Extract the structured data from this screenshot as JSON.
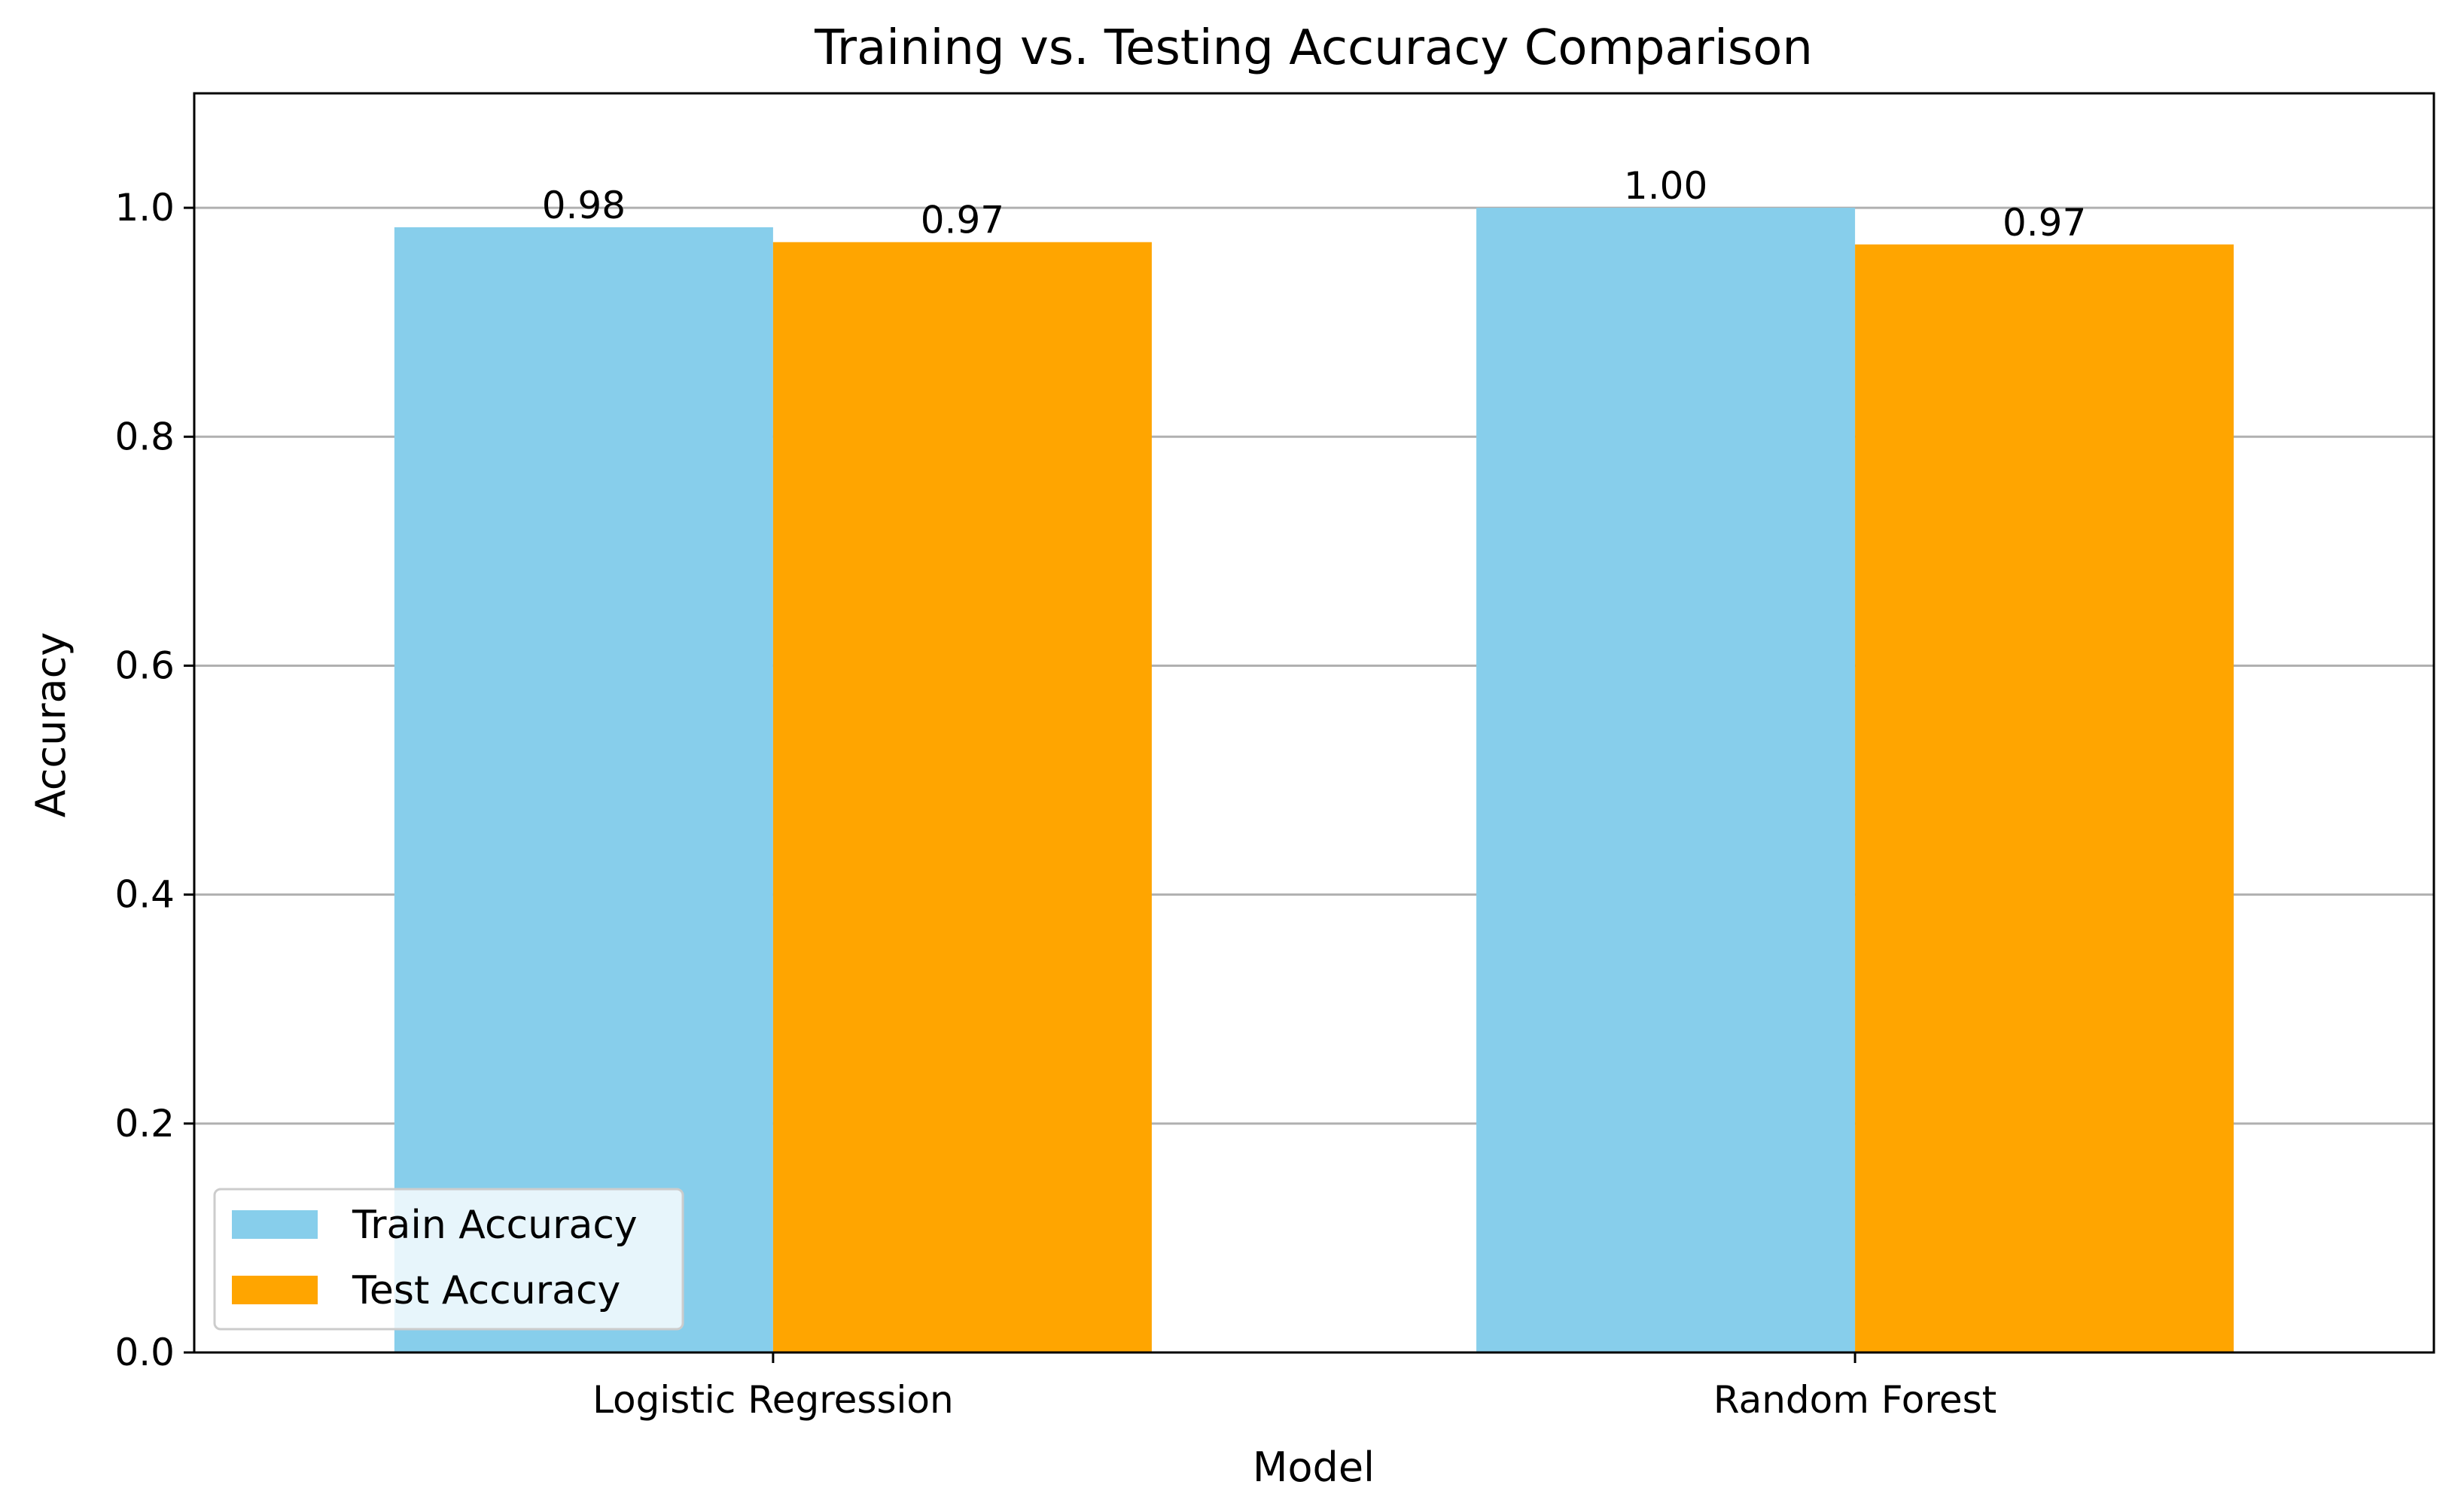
{
  "chart_data": {
    "type": "bar",
    "title": "Training vs. Testing Accuracy Comparison",
    "xlabel": "Model",
    "ylabel": "Accuracy",
    "categories": [
      "Logistic Regression",
      "Random Forest"
    ],
    "series": [
      {
        "name": "Train Accuracy",
        "values": [
          0.983,
          1.0
        ],
        "labels": [
          "0.98",
          "1.00"
        ],
        "color": "#87CEEB"
      },
      {
        "name": "Test Accuracy",
        "values": [
          0.97,
          0.968
        ],
        "labels": [
          "0.97",
          "0.97"
        ],
        "color": "#FFA500"
      }
    ],
    "ylim": [
      0,
      1.1
    ],
    "yticks": [
      0.0,
      0.2,
      0.4,
      0.6,
      0.8,
      1.0
    ],
    "ytick_labels": [
      "0.0",
      "0.2",
      "0.4",
      "0.6",
      "0.8",
      "1.0"
    ],
    "grid": "y",
    "grid_color": "#b0b0b0",
    "legend_position": "lower-left"
  }
}
